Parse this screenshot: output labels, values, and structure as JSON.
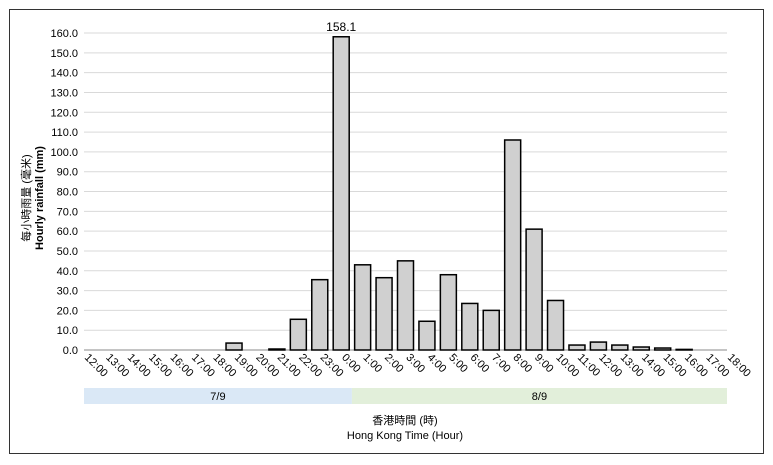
{
  "chart_data": {
    "type": "bar",
    "y_axis_title": [
      "每小時雨量 (毫米)",
      "Hourly rainfall (mm)"
    ],
    "x_axis_title": [
      "香港時間 (時)",
      "Hong Kong Time (Hour)"
    ],
    "categories": [
      "12:00",
      "13:00",
      "14:00",
      "15:00",
      "16:00",
      "17:00",
      "18:00",
      "19:00",
      "20:00",
      "21:00",
      "22:00",
      "23:00",
      "0:00",
      "1:00",
      "2:00",
      "3:00",
      "4:00",
      "5:00",
      "6:00",
      "7:00",
      "8:00",
      "9:00",
      "10:00",
      "11:00",
      "12:00",
      "13:00",
      "14:00",
      "15:00",
      "16:00",
      "17:00",
      "18:00"
    ],
    "values": [
      null,
      null,
      null,
      null,
      null,
      null,
      null,
      3.5,
      null,
      0.5,
      15.5,
      35.5,
      158.1,
      43,
      36.5,
      45,
      14.5,
      38,
      23.5,
      20,
      106,
      61,
      25,
      2.5,
      4,
      2.5,
      1.5,
      1,
      0.3,
      null,
      null
    ],
    "labeled_value_index": 12,
    "color": "#d0d0d0",
    "edge_color": "#000000",
    "ylim": [
      0,
      160
    ],
    "yticks": [
      {
        "value": 0,
        "label": "0.0"
      },
      {
        "value": 10,
        "label": "10.0"
      },
      {
        "value": 20,
        "label": "20.0"
      },
      {
        "value": 30,
        "label": "30.0"
      },
      {
        "value": 40,
        "label": "40.0"
      },
      {
        "value": 50,
        "label": "50.0"
      },
      {
        "value": 60,
        "label": "60.0"
      },
      {
        "value": 70,
        "label": "70.0"
      },
      {
        "value": 80,
        "label": "80.0"
      },
      {
        "value": 90,
        "label": "90.0"
      },
      {
        "value": 100,
        "label": "100.0"
      },
      {
        "value": 110,
        "label": "110.0"
      },
      {
        "value": 120,
        "label": "120.0"
      },
      {
        "value": 130,
        "label": "130.0"
      },
      {
        "value": 140,
        "label": "140.0"
      },
      {
        "value": 150,
        "label": "150.0"
      },
      {
        "value": 160,
        "label": "160.0"
      }
    ],
    "grid": true,
    "date_bands": [
      {
        "label": "7/9",
        "color": "#dae8f6"
      },
      {
        "label": "8/9",
        "color": "#e2efda"
      }
    ]
  }
}
